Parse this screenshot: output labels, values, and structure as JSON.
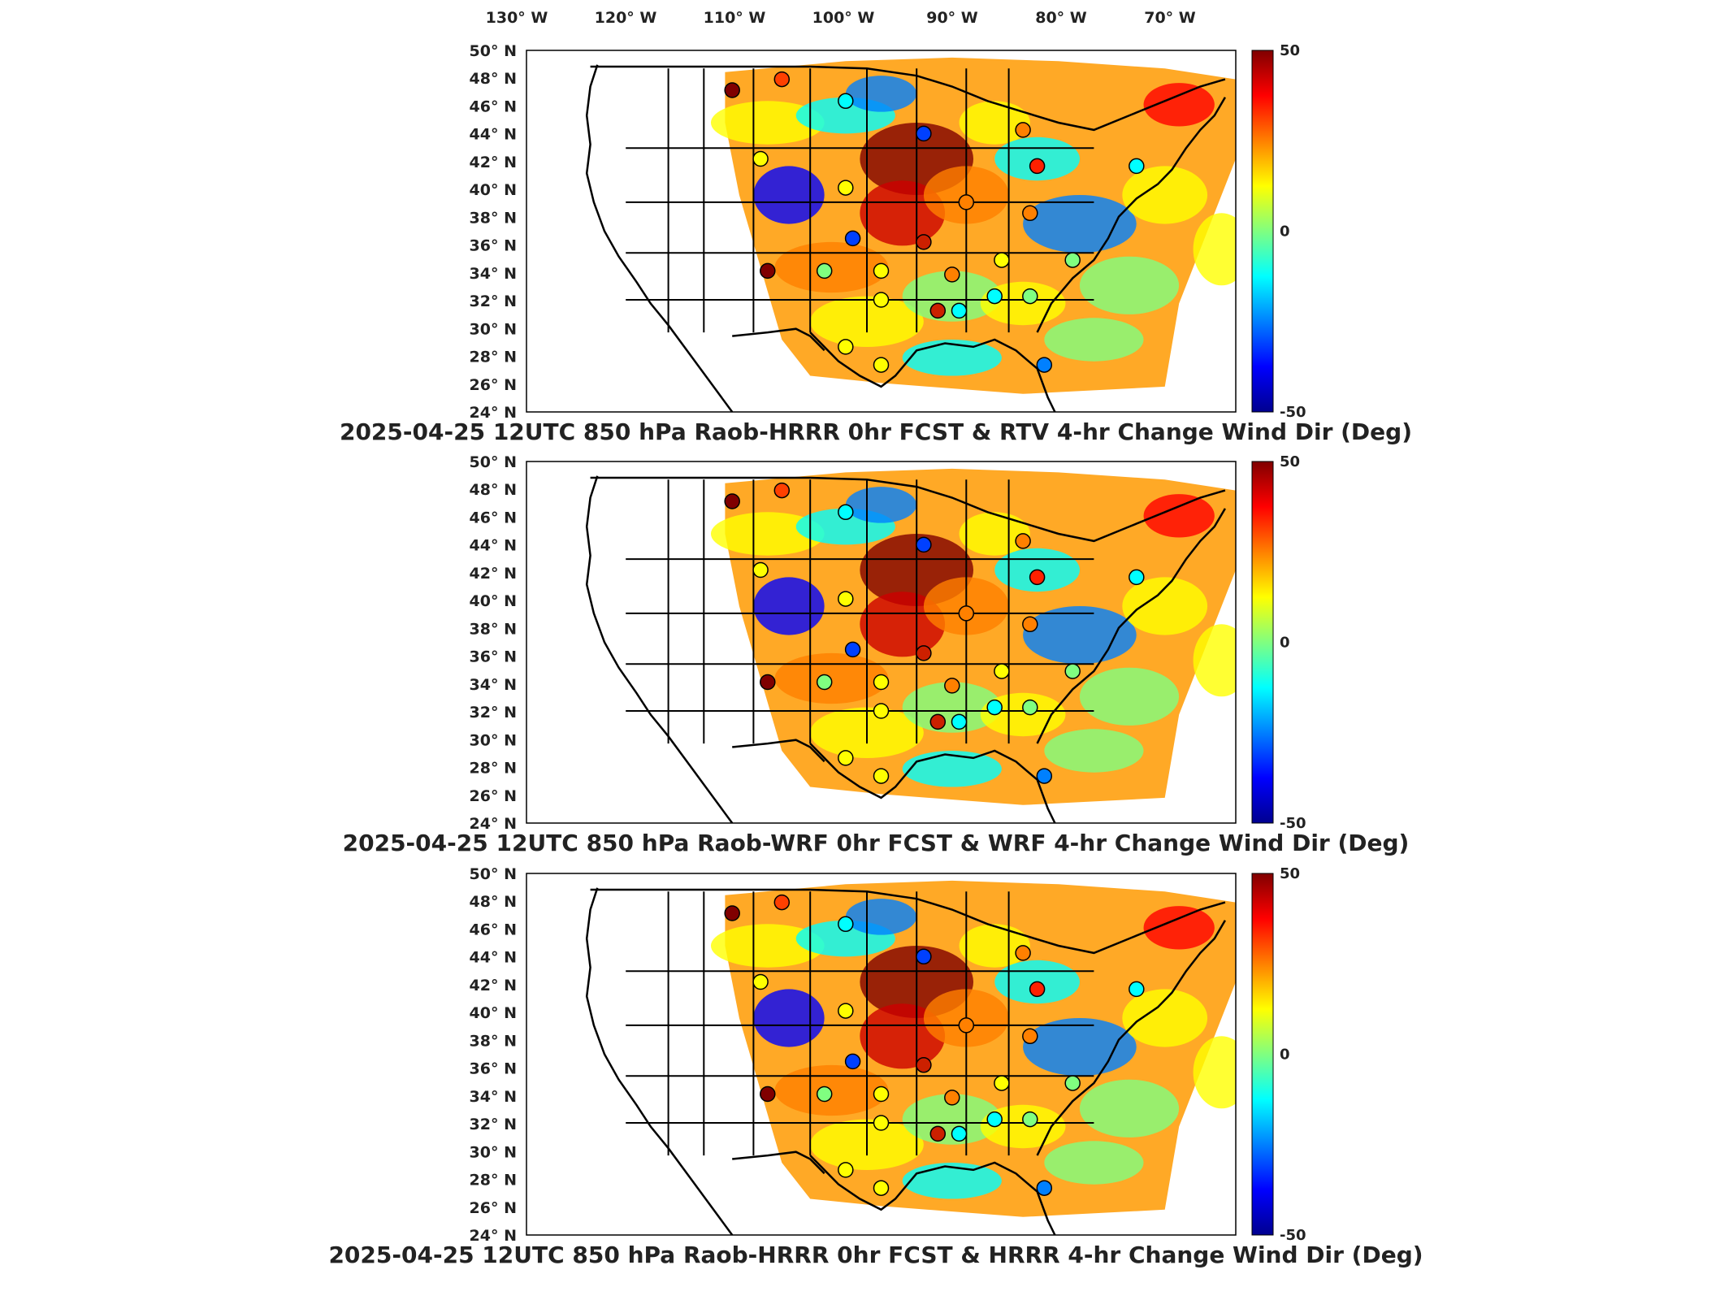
{
  "top_axis": {
    "lon_ticks": [
      "130",
      "120",
      "110",
      "100",
      "90",
      "80",
      "70"
    ],
    "lon_suffix": "W",
    "degree_symbol": "°"
  },
  "lat_axis": {
    "lat_ticks": [
      "50",
      "48",
      "46",
      "44",
      "42",
      "40",
      "38",
      "36",
      "34",
      "32",
      "30",
      "28",
      "26",
      "24"
    ],
    "lat_suffix": "N"
  },
  "colorbar": {
    "max_label": "50",
    "mid_label": "0",
    "min_label": "-50",
    "colormap": "jet",
    "colors": [
      "#00008f",
      "#0000ff",
      "#0080ff",
      "#00ffff",
      "#80ff80",
      "#ffff00",
      "#ff8000",
      "#ff0000",
      "#800000"
    ]
  },
  "panels": [
    {
      "title": "2025-04-25 12UTC 850 hPa Raob-HRRR 0hr FCST & RTV 4-hr Change Wind Dir (Deg)",
      "field": "RTV 4-hr change wind direction"
    },
    {
      "title": "2025-04-25 12UTC 850 hPa Raob-WRF 0hr FCST & WRF 4-hr Change Wind Dir (Deg)",
      "field": "WRF 4-hr change wind direction"
    },
    {
      "title": "2025-04-25 12UTC 850 hPa Raob-HRRR 0hr FCST & HRRR 4-hr Change Wind Dir (Deg)",
      "field": "HRRR 4-hr change wind direction"
    }
  ]
}
